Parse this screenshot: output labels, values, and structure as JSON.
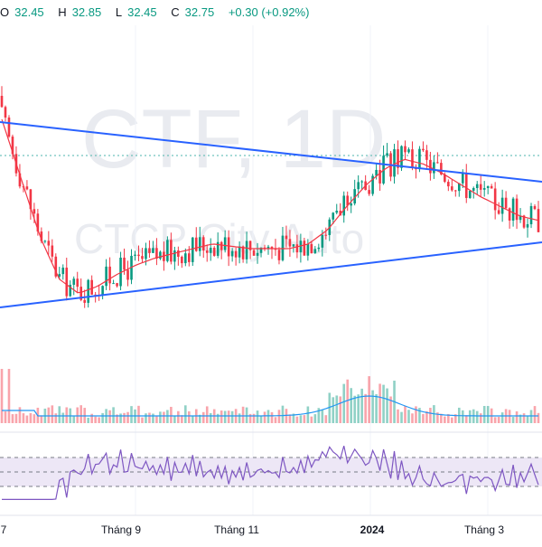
{
  "header": {
    "open_label": "O",
    "open_value": "32.45",
    "high_label": "H",
    "high_value": "32.85",
    "low_label": "L",
    "low_value": "32.45",
    "close_label": "C",
    "close_value": "32.75",
    "change": "+0.30 (+0.92%)"
  },
  "watermark": {
    "symbol": "CTF, 1D",
    "name": "CTCP City Auto"
  },
  "colors": {
    "up": "#089981",
    "down": "#f23645",
    "ma": "#f23645",
    "trendline": "#2962ff",
    "volume_ma": "#2196f3",
    "rsi_line": "#7e57c2",
    "rsi_band": "#ede7f6",
    "rsi_level": "#787b86"
  },
  "chart_data": [
    {
      "type": "candlestick",
      "series_name": "CTF",
      "overlays": [
        "moving-average",
        "triangle-trendlines",
        "dotted-horizontal-level"
      ],
      "x_tick_labels": [
        "7",
        "Tháng 9",
        "Tháng 11",
        "2024",
        "Tháng 3"
      ],
      "ma_values": [
        32.0,
        29.5,
        27.0,
        25.2,
        24.6,
        24.9,
        25.4,
        25.8,
        26.1,
        26.3,
        26.5,
        26.7,
        26.6,
        26.5,
        26.5,
        26.5,
        26.7,
        27.3,
        28.3,
        29.2,
        29.9,
        30.3,
        30.1,
        29.7,
        29.2,
        28.7,
        28.3,
        27.9,
        27.7
      ]
    },
    {
      "type": "bar",
      "series_name": "Volume",
      "overlays": [
        "volume-moving-average"
      ]
    },
    {
      "type": "line",
      "series_name": "RSI",
      "ylim": [
        0,
        100
      ],
      "levels": [
        70,
        50,
        30
      ]
    }
  ]
}
